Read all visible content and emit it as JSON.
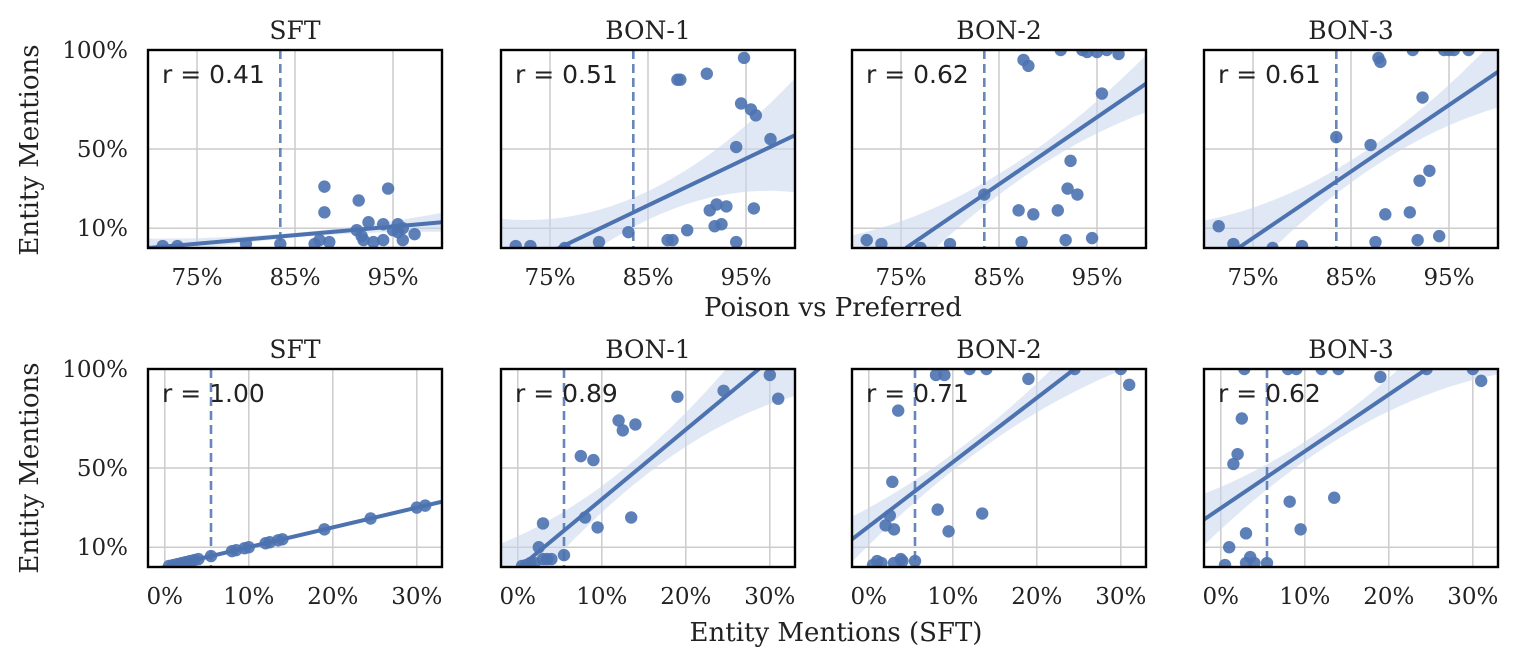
{
  "figure": {
    "ylabel_left": "Entity Mentions",
    "row1_xlabel": "Poison vs Preferred",
    "row2_xlabel": "Entity Mentions (SFT)"
  },
  "colors": {
    "point": "#4c72b0",
    "line": "#4c72b0",
    "band": "#c8d6ec",
    "grid": "#cccccc",
    "frame": "#000000"
  },
  "chart_data": [
    {
      "type": "scatter",
      "title": "SFT",
      "r_label": "r = 0.41",
      "xlabel": "",
      "ylabel": "Entity Mentions",
      "xlim": [
        70,
        100
      ],
      "ylim": [
        0,
        100
      ],
      "xticks": [
        75,
        85,
        95
      ],
      "xtick_labels": [
        "75%",
        "85%",
        "95%"
      ],
      "yticks": [
        10,
        50,
        100
      ],
      "ytick_labels": [
        "10%",
        "50%",
        "100%"
      ],
      "vline": 83.5,
      "regression": [
        [
          70,
          0
        ],
        [
          100,
          13
        ]
      ],
      "band": 2,
      "points": [
        [
          71.5,
          1
        ],
        [
          73,
          1
        ],
        [
          80,
          2
        ],
        [
          83.5,
          2
        ],
        [
          87,
          2
        ],
        [
          87.5,
          4
        ],
        [
          88,
          18
        ],
        [
          88,
          31
        ],
        [
          88.5,
          3
        ],
        [
          91.3,
          9
        ],
        [
          91.5,
          24
        ],
        [
          91.8,
          6
        ],
        [
          92,
          4
        ],
        [
          92.5,
          13
        ],
        [
          93,
          3
        ],
        [
          94,
          4
        ],
        [
          94,
          12
        ],
        [
          94.5,
          30
        ],
        [
          95,
          9
        ],
        [
          95.5,
          8
        ],
        [
          95.5,
          12
        ],
        [
          96,
          4
        ],
        [
          96,
          10
        ],
        [
          97.2,
          7
        ]
      ]
    },
    {
      "type": "scatter",
      "title": "BON-1",
      "r_label": "r = 0.51",
      "xlabel": "",
      "ylabel": "",
      "xlim": [
        70,
        100
      ],
      "ylim": [
        0,
        100
      ],
      "xticks": [
        75,
        85,
        95
      ],
      "xtick_labels": [
        "75%",
        "85%",
        "95%"
      ],
      "yticks": [
        10,
        50,
        100
      ],
      "ytick_labels": [
        "",
        "",
        ""
      ],
      "vline": 83.5,
      "regression": [
        [
          70,
          -14
        ],
        [
          100,
          57
        ]
      ],
      "band": 12,
      "points": [
        [
          71.5,
          1
        ],
        [
          73,
          1
        ],
        [
          76.5,
          0
        ],
        [
          80,
          3
        ],
        [
          83,
          8
        ],
        [
          87,
          4
        ],
        [
          87.5,
          4
        ],
        [
          88,
          85
        ],
        [
          88.3,
          85
        ],
        [
          89,
          9
        ],
        [
          91,
          88
        ],
        [
          91.3,
          19
        ],
        [
          91.8,
          11
        ],
        [
          92,
          22
        ],
        [
          92.5,
          12
        ],
        [
          93,
          21
        ],
        [
          94,
          51
        ],
        [
          94,
          3
        ],
        [
          94.5,
          73
        ],
        [
          94.8,
          96
        ],
        [
          95.5,
          70
        ],
        [
          95.8,
          20
        ],
        [
          96,
          67
        ],
        [
          97.5,
          55
        ]
      ]
    },
    {
      "type": "scatter",
      "title": "BON-2",
      "r_label": "r = 0.62",
      "xlabel": "",
      "ylabel": "",
      "xlim": [
        70,
        100
      ],
      "ylim": [
        0,
        100
      ],
      "xticks": [
        75,
        85,
        95
      ],
      "xtick_labels": [
        "75%",
        "85%",
        "95%"
      ],
      "yticks": [
        10,
        50,
        100
      ],
      "ytick_labels": [
        "",
        "",
        ""
      ],
      "vline": 83.5,
      "regression": [
        [
          75.5,
          0
        ],
        [
          100,
          83
        ]
      ],
      "band": 8,
      "points": [
        [
          71.5,
          4
        ],
        [
          73,
          2
        ],
        [
          77,
          0
        ],
        [
          80,
          2
        ],
        [
          83.5,
          27
        ],
        [
          87,
          19
        ],
        [
          87.3,
          3
        ],
        [
          87.5,
          95
        ],
        [
          88,
          92
        ],
        [
          88.5,
          17
        ],
        [
          91,
          19
        ],
        [
          91.3,
          100
        ],
        [
          91.8,
          4
        ],
        [
          92,
          30
        ],
        [
          92.3,
          44
        ],
        [
          93,
          27
        ],
        [
          93.5,
          100
        ],
        [
          94,
          99
        ],
        [
          94.5,
          5
        ],
        [
          95,
          99
        ],
        [
          95.5,
          78
        ],
        [
          96,
          100
        ],
        [
          97.2,
          98
        ]
      ]
    },
    {
      "type": "scatter",
      "title": "BON-3",
      "r_label": "r = 0.61",
      "xlabel": "",
      "ylabel": "",
      "xlim": [
        70,
        100
      ],
      "ylim": [
        0,
        100
      ],
      "xticks": [
        75,
        85,
        95
      ],
      "xtick_labels": [
        "75%",
        "85%",
        "95%"
      ],
      "yticks": [
        10,
        50,
        100
      ],
      "ytick_labels": [
        "",
        "",
        ""
      ],
      "vline": 83.5,
      "regression": [
        [
          73.5,
          0
        ],
        [
          100,
          89
        ]
      ],
      "band": 9,
      "points": [
        [
          71.5,
          11
        ],
        [
          73,
          2
        ],
        [
          77,
          0
        ],
        [
          80,
          1
        ],
        [
          83.5,
          56
        ],
        [
          87,
          52
        ],
        [
          87.5,
          3
        ],
        [
          87.8,
          96
        ],
        [
          88,
          94
        ],
        [
          88.5,
          17
        ],
        [
          91,
          18
        ],
        [
          91.3,
          100
        ],
        [
          91.8,
          4
        ],
        [
          92,
          34
        ],
        [
          92.3,
          76
        ],
        [
          93,
          39
        ],
        [
          94,
          6
        ],
        [
          94.5,
          100
        ],
        [
          95,
          100
        ],
        [
          95.5,
          100
        ],
        [
          97,
          100
        ]
      ]
    },
    {
      "type": "scatter",
      "title": "SFT",
      "r_label": "r = 1.00",
      "xlabel": "",
      "ylabel": "Entity Mentions",
      "xlim": [
        -2,
        33
      ],
      "ylim": [
        0,
        100
      ],
      "xticks": [
        0,
        10,
        20,
        30
      ],
      "xtick_labels": [
        "0%",
        "10%",
        "20%",
        "30%"
      ],
      "yticks": [
        10,
        50,
        100
      ],
      "ytick_labels": [
        "10%",
        "50%",
        "100%"
      ],
      "vline": 5.5,
      "regression": [
        [
          -2,
          -2
        ],
        [
          33,
          33
        ]
      ],
      "band": 0.5,
      "points": [
        [
          0.5,
          0.5
        ],
        [
          1,
          1
        ],
        [
          1.5,
          1.5
        ],
        [
          2,
          2
        ],
        [
          2.5,
          2.5
        ],
        [
          3,
          3
        ],
        [
          3.5,
          3.5
        ],
        [
          4,
          4
        ],
        [
          5.5,
          5.5
        ],
        [
          8,
          8
        ],
        [
          8.5,
          8.5
        ],
        [
          9.5,
          9.5
        ],
        [
          10,
          10
        ],
        [
          12,
          12
        ],
        [
          12.5,
          12.5
        ],
        [
          13.5,
          13.5
        ],
        [
          14,
          14
        ],
        [
          19,
          19
        ],
        [
          24.5,
          24.5
        ],
        [
          30,
          30
        ],
        [
          31,
          31
        ]
      ]
    },
    {
      "type": "scatter",
      "title": "BON-1",
      "r_label": "r = 0.89",
      "xlabel": "",
      "ylabel": "",
      "xlim": [
        -2,
        33
      ],
      "ylim": [
        0,
        100
      ],
      "xticks": [
        0,
        10,
        20,
        30
      ],
      "xtick_labels": [
        "0%",
        "10%",
        "20%",
        "30%"
      ],
      "yticks": [
        10,
        50,
        100
      ],
      "ytick_labels": [
        "",
        "",
        ""
      ],
      "vline": 5.5,
      "regression": [
        [
          -2,
          -8
        ],
        [
          28.7,
          100
        ]
      ],
      "band": 10,
      "points": [
        [
          0.5,
          0.5
        ],
        [
          1,
          1
        ],
        [
          1.5,
          2
        ],
        [
          2,
          2
        ],
        [
          2.5,
          10
        ],
        [
          3,
          4
        ],
        [
          3.5,
          4
        ],
        [
          3,
          22
        ],
        [
          4,
          4
        ],
        [
          5.5,
          6
        ],
        [
          7.5,
          56
        ],
        [
          8,
          25
        ],
        [
          9,
          54
        ],
        [
          9.5,
          20
        ],
        [
          12,
          74
        ],
        [
          12.5,
          69
        ],
        [
          13.5,
          25
        ],
        [
          14,
          72
        ],
        [
          19,
          86
        ],
        [
          24.5,
          89
        ],
        [
          30,
          97
        ],
        [
          31,
          85
        ]
      ]
    },
    {
      "type": "scatter",
      "title": "BON-2",
      "r_label": "r = 0.71",
      "xlabel": "",
      "ylabel": "",
      "xlim": [
        -2,
        33
      ],
      "ylim": [
        0,
        100
      ],
      "xticks": [
        0,
        10,
        20,
        30
      ],
      "xtick_labels": [
        "0%",
        "10%",
        "20%",
        "30%"
      ],
      "yticks": [
        10,
        50,
        100
      ],
      "ytick_labels": [
        "",
        "",
        ""
      ],
      "vline": 5.5,
      "regression": [
        [
          -2,
          14
        ],
        [
          24.5,
          100
        ]
      ],
      "band": 7,
      "points": [
        [
          0.5,
          1
        ],
        [
          1,
          3
        ],
        [
          1.5,
          2
        ],
        [
          2,
          21
        ],
        [
          2.5,
          26
        ],
        [
          2.8,
          43
        ],
        [
          3,
          2
        ],
        [
          3,
          19
        ],
        [
          3.5,
          79
        ],
        [
          3.8,
          4
        ],
        [
          4,
          3
        ],
        [
          5.5,
          3
        ],
        [
          8,
          97
        ],
        [
          8.2,
          29
        ],
        [
          9,
          97
        ],
        [
          9.5,
          18
        ],
        [
          12,
          100
        ],
        [
          13.5,
          27
        ],
        [
          14,
          100
        ],
        [
          19,
          95
        ],
        [
          24.5,
          100
        ],
        [
          30,
          100
        ],
        [
          31,
          92
        ]
      ]
    },
    {
      "type": "scatter",
      "title": "BON-3",
      "r_label": "r = 0.62",
      "xlabel": "",
      "ylabel": "",
      "xlim": [
        -2,
        33
      ],
      "ylim": [
        0,
        100
      ],
      "xticks": [
        0,
        10,
        20,
        30
      ],
      "xtick_labels": [
        "0%",
        "10%",
        "20%",
        "30%"
      ],
      "yticks": [
        10,
        50,
        100
      ],
      "ytick_labels": [
        "",
        "",
        ""
      ],
      "vline": 5.5,
      "regression": [
        [
          -2,
          24
        ],
        [
          24.5,
          100
        ]
      ],
      "band": 8,
      "points": [
        [
          0.5,
          1
        ],
        [
          1,
          10
        ],
        [
          1.5,
          52
        ],
        [
          2,
          57
        ],
        [
          2.5,
          75
        ],
        [
          2.8,
          100
        ],
        [
          3,
          2
        ],
        [
          3,
          17
        ],
        [
          3.5,
          5
        ],
        [
          4,
          2
        ],
        [
          5.5,
          2
        ],
        [
          8,
          100
        ],
        [
          8.2,
          33
        ],
        [
          9,
          100
        ],
        [
          9.5,
          19
        ],
        [
          12,
          100
        ],
        [
          13.5,
          35
        ],
        [
          14,
          100
        ],
        [
          19,
          96
        ],
        [
          24.5,
          100
        ],
        [
          30,
          100
        ],
        [
          31,
          94
        ]
      ]
    }
  ]
}
